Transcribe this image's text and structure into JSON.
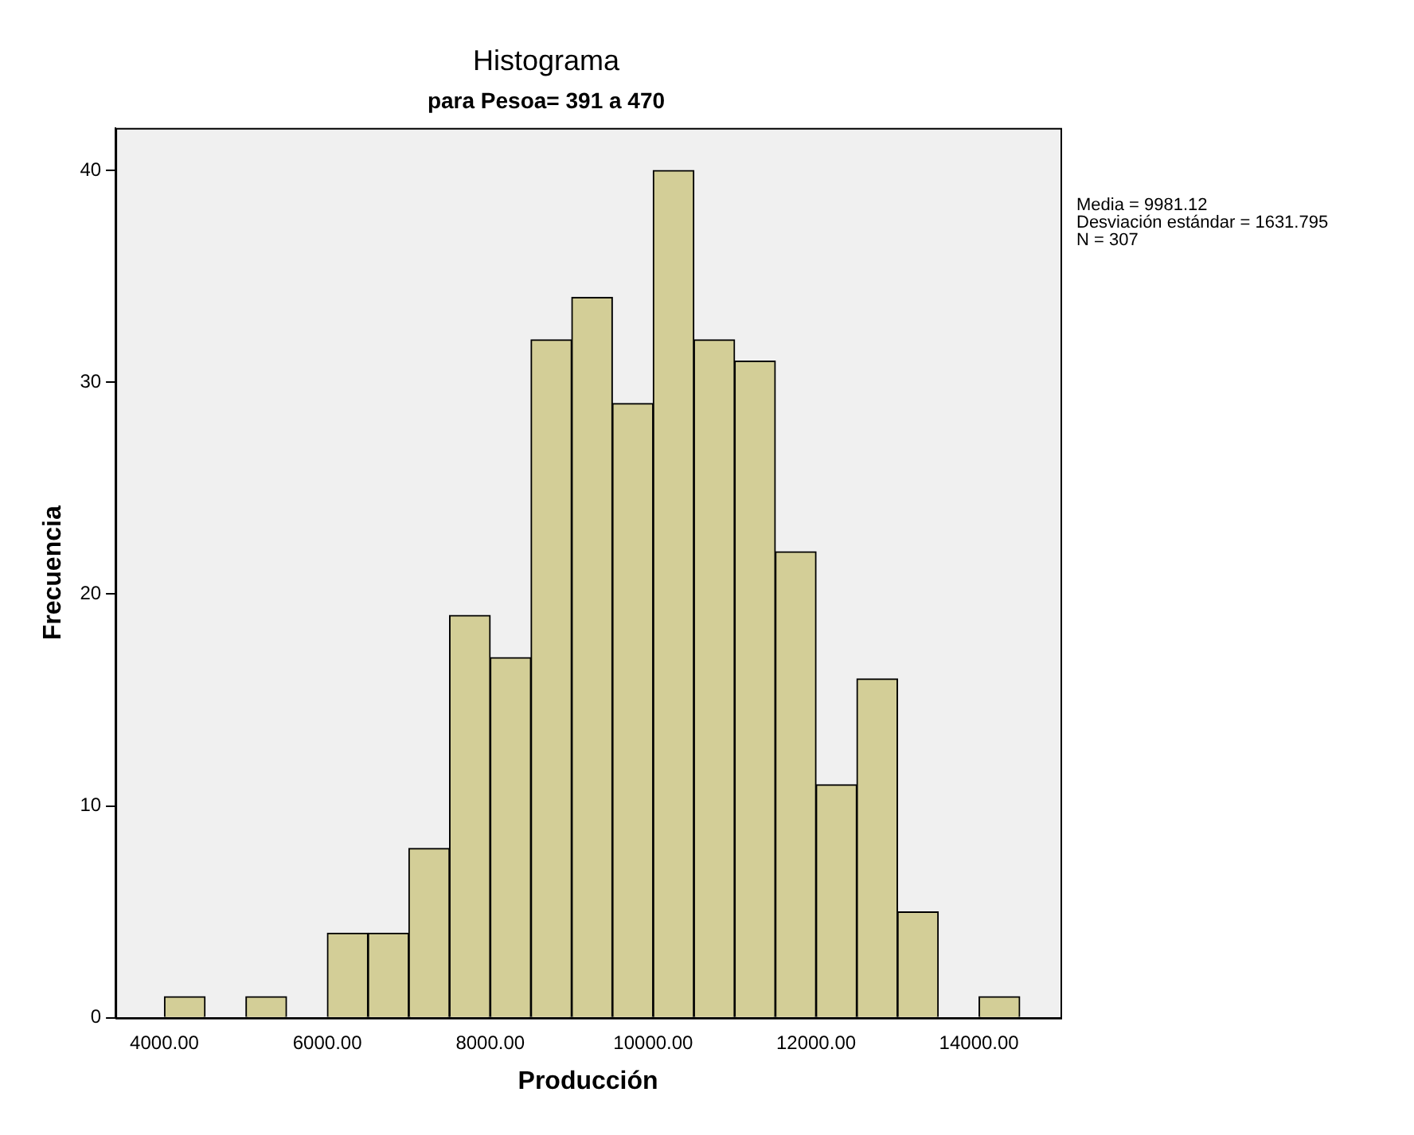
{
  "chart_data": {
    "type": "histogram",
    "title": "Histograma",
    "subtitle": "para Pesoa= 391 a 470",
    "xlabel": "Producción",
    "ylabel": "Frecuencia",
    "bins": [
      4000,
      4500,
      5000,
      5500,
      6000,
      6500,
      7000,
      7500,
      8000,
      8500,
      9000,
      9500,
      10000,
      10500,
      11000,
      11500,
      12000,
      12500,
      13000,
      13500,
      14000,
      14500
    ],
    "values": [
      1,
      0,
      1,
      0,
      4,
      4,
      8,
      19,
      17,
      32,
      34,
      29,
      40,
      32,
      31,
      22,
      11,
      16,
      5,
      0,
      1
    ],
    "color": "#d3ce97",
    "xlim": [
      3400,
      15000
    ],
    "xticks": [
      {
        "value": 4000,
        "label": "4000.00"
      },
      {
        "value": 6000,
        "label": "6000.00"
      },
      {
        "value": 8000,
        "label": "8000.00"
      },
      {
        "value": 10000,
        "label": "10000.00"
      },
      {
        "value": 12000,
        "label": "12000.00"
      },
      {
        "value": 14000,
        "label": "14000.00"
      }
    ],
    "ylim": [
      0,
      42
    ],
    "yticks": [
      0,
      10,
      20,
      30,
      40
    ],
    "grid": false,
    "legend": false,
    "annotations": [
      "Media = 9981.12",
      "Desviación estándar = 1631.795",
      "N = 307"
    ]
  }
}
